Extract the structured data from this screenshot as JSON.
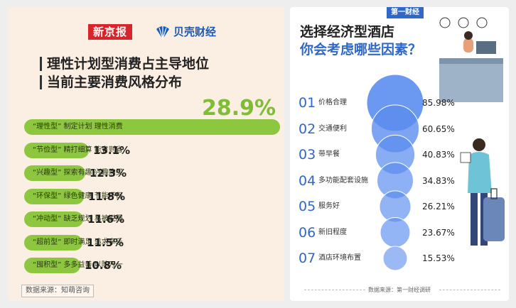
{
  "left": {
    "brand_primary": "新京报",
    "brand_secondary": "贝壳财经",
    "title_line1": "理性计划型消费占主导地位",
    "title_line2": "当前主要消费风格分布",
    "source": "数据来源：知萌咨询",
    "colors": {
      "pill": "#8dc63f",
      "big_pct": "#7ebd34",
      "brand_red": "#d7262b",
      "brand_blue": "#1c5bb3"
    }
  },
  "right": {
    "brand": "第一财经",
    "title_line1": "选择经济型酒店",
    "title_line2": "你会考虑哪些因素？",
    "source": "数据来源：第一财经调研",
    "colors": {
      "accent": "#2f68c8",
      "bubble": "#5b8def"
    }
  },
  "chart_data": [
    {
      "type": "bar",
      "unit": "%",
      "categories": [
        "“理性型” 制定计划 理性消费",
        "“节俭型” 精打细算 能省则省",
        "“兴趣型” 探索有趣 兴趣购买",
        "“环保型” 绿色健康 节能环保",
        "“冲动型” 缺乏规划 易被说服",
        "“超前型” 即时满足 追求享乐",
        "“囤积型” 多多益善 以防万一"
      ],
      "values": [
        28.9,
        13.1,
        12.3,
        11.8,
        11.6,
        11.5,
        10.8
      ],
      "value_labels": [
        "28.9%",
        "13.1%",
        "12.3%",
        "11.8%",
        "11.6%",
        "11.5%",
        "10.8%"
      ]
    },
    {
      "type": "bubble",
      "unit": "%",
      "indices": [
        "01",
        "02",
        "03",
        "04",
        "05",
        "06",
        "07"
      ],
      "categories": [
        "价格合理",
        "交通便利",
        "带早餐",
        "多功能配套设施",
        "服务好",
        "新旧程度",
        "酒店环境布置"
      ],
      "values": [
        85.98,
        60.65,
        40.83,
        34.83,
        26.21,
        23.67,
        15.53
      ],
      "value_labels": [
        "85.98%",
        "60.65%",
        "40.83%",
        "34.83%",
        "26.21%",
        "23.67%",
        "15.53%"
      ]
    }
  ]
}
